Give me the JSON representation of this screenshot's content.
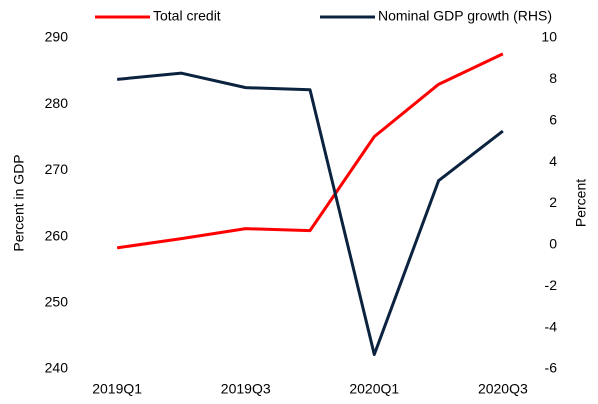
{
  "chart_data": {
    "type": "line",
    "categories": [
      "2019Q1",
      null,
      "2019Q3",
      null,
      "2020Q1",
      null,
      "2020Q3"
    ],
    "series": [
      {
        "name": "Total credit",
        "color": "#ff0000",
        "values": [
          258.3,
          259.7,
          261.2,
          260.9,
          275.1,
          283.0,
          287.6
        ]
      },
      {
        "name": "Nominal GDP growth (RHS)",
        "color": "#0c2340",
        "axis": "y2",
        "values": [
          8.0,
          8.3,
          7.6,
          7.5,
          -5.3,
          3.1,
          5.5
        ]
      }
    ],
    "y_label": "Percent in GDP",
    "y2_label": "Percent",
    "ylim": [
      240,
      290
    ],
    "yticks": [
      240,
      250,
      260,
      270,
      280,
      290
    ],
    "y2lim": [
      -6,
      10
    ],
    "y2ticks": [
      -6,
      -4,
      -2,
      0,
      2,
      4,
      6,
      8,
      10
    ],
    "grid": false
  }
}
